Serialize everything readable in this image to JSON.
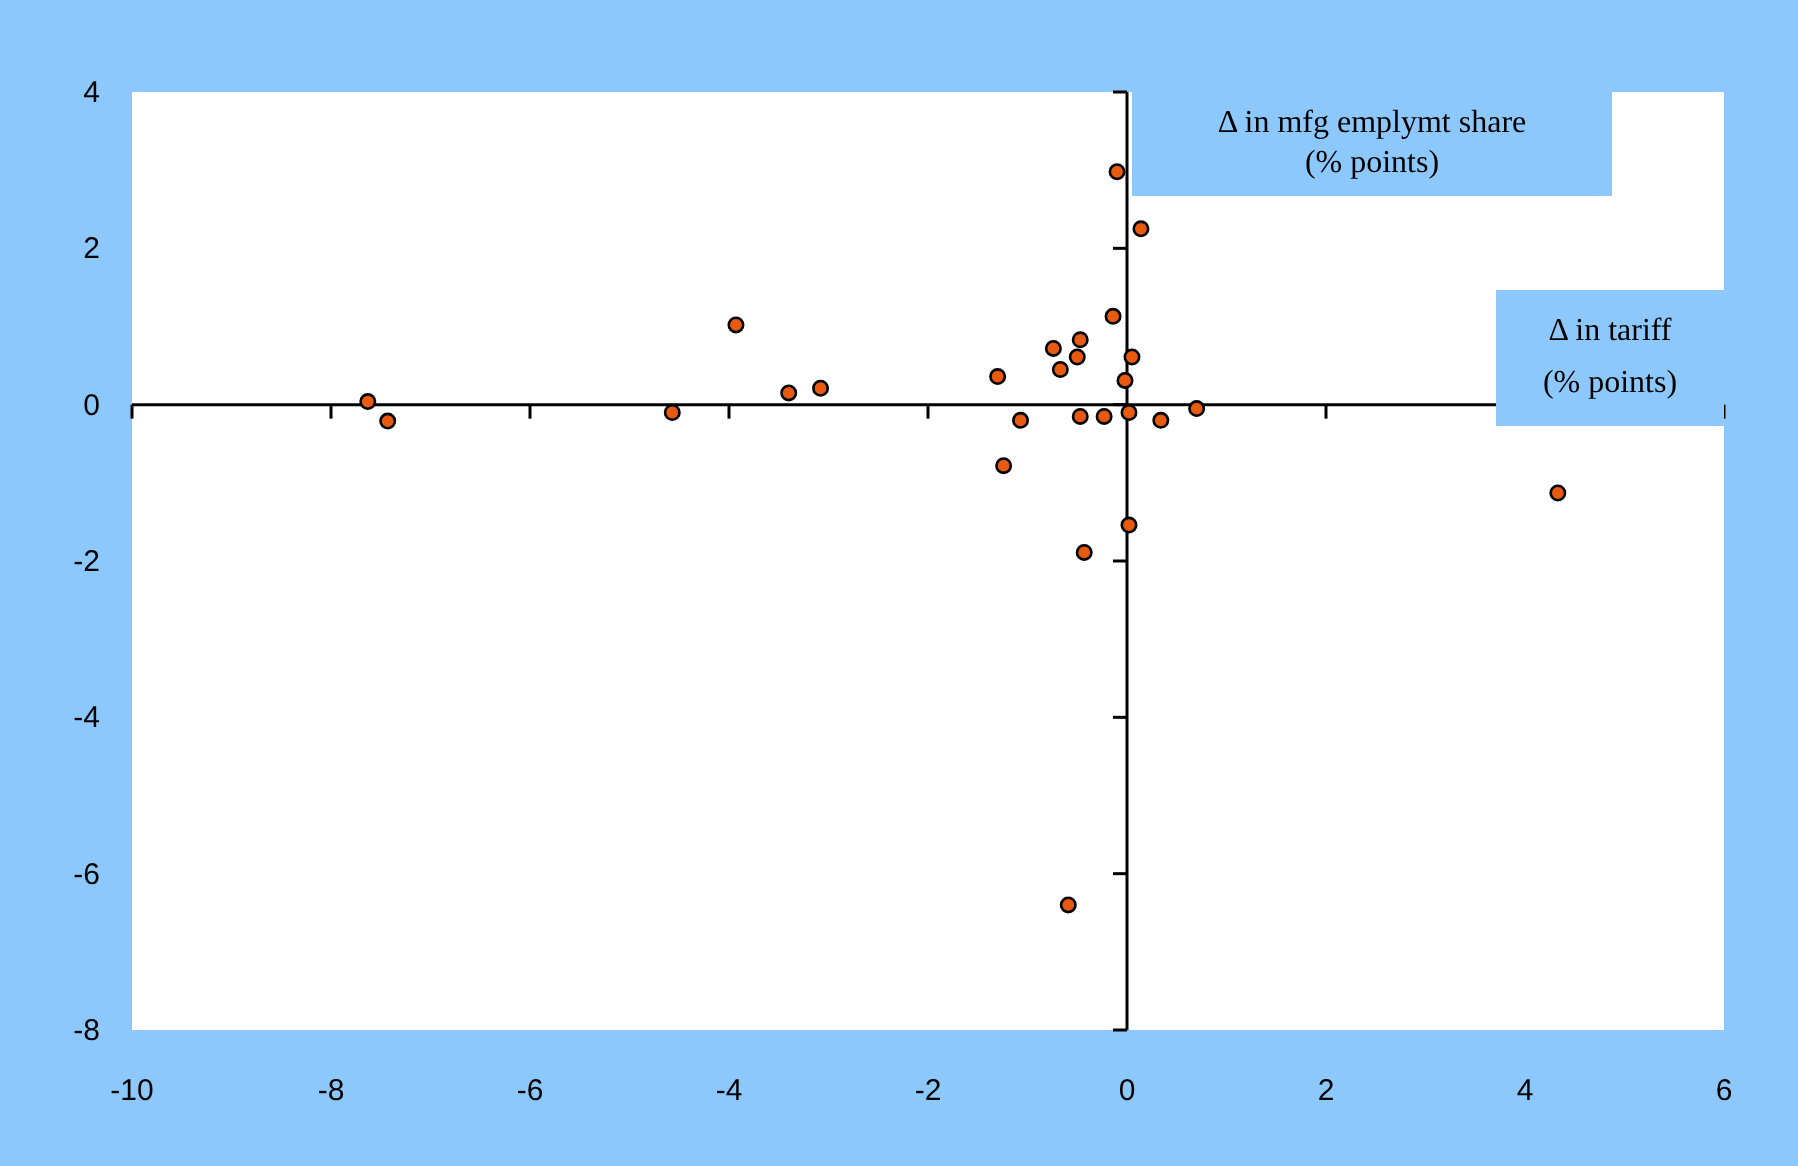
{
  "chart_data": {
    "type": "scatter",
    "xlabel": "Δ in tariff (% points)",
    "ylabel": "Δ in mfg emplymt share (% points)",
    "xlim": [
      -10,
      6
    ],
    "ylim": [
      -8,
      4
    ],
    "xticks": [
      -10,
      -8,
      -6,
      -4,
      -2,
      0,
      2,
      4,
      6
    ],
    "yticks": [
      -8,
      -6,
      -4,
      -2,
      0,
      2,
      4
    ],
    "marker": "circle",
    "series": [
      {
        "color": "#e85a10",
        "x": [
          -0.1,
          0.14,
          -0.14,
          -0.74,
          -0.47,
          -0.5,
          -0.67,
          0.05,
          -0.02,
          -1.3,
          -1.07,
          -0.47,
          -0.23,
          0.02,
          0.34,
          0.7,
          -1.24,
          0.02,
          -0.43,
          -0.59,
          -7.63,
          -7.43,
          -4.57,
          -3.93,
          -3.4,
          -3.08,
          4.33
        ],
        "values": [
          2.98,
          2.25,
          1.13,
          0.72,
          0.83,
          0.61,
          0.45,
          0.61,
          0.31,
          0.36,
          -0.2,
          -0.15,
          -0.15,
          -0.1,
          -0.2,
          -0.05,
          -0.78,
          -1.54,
          -1.89,
          -6.4,
          0.04,
          -0.21,
          -0.1,
          1.02,
          0.15,
          0.21,
          -1.13
        ]
      }
    ]
  }
}
